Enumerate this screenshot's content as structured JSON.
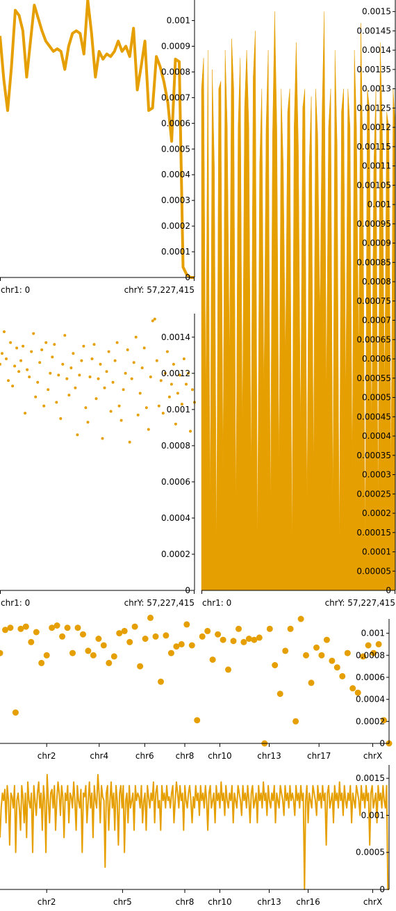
{
  "colors": {
    "series": "#e69f00",
    "axis": "#000000",
    "background": "#ffffff"
  },
  "chart_data": [
    {
      "id": "panel1",
      "type": "line",
      "xlabel_start": "chr1: 0",
      "xlabel_end": "chrY: 57,227,415",
      "ylim": [
        0,
        0.00108
      ],
      "yticks": [
        "0.001",
        "0.0009",
        "0.0008",
        "0.0007",
        "0.0006",
        "0.0005",
        "0.0004",
        "0.0003",
        "0.0002",
        "0.0001",
        "0"
      ],
      "ytick_values": [
        0.001,
        0.0009,
        0.0008,
        0.0007,
        0.0006,
        0.0005,
        0.0004,
        0.0003,
        0.0002,
        0.0001,
        0
      ],
      "values": [
        0.00094,
        0.00077,
        0.00065,
        0.00082,
        0.00104,
        0.00102,
        0.00096,
        0.00078,
        0.00092,
        0.00106,
        0.00101,
        0.00096,
        0.00092,
        0.0009,
        0.00088,
        0.00089,
        0.00088,
        0.00081,
        0.0009,
        0.00095,
        0.00096,
        0.00095,
        0.00087,
        0.00108,
        0.00095,
        0.00078,
        0.00088,
        0.00085,
        0.00087,
        0.00086,
        0.00088,
        0.00092,
        0.00088,
        0.0009,
        0.00086,
        0.00097,
        0.00073,
        0.00082,
        0.00092,
        0.00065,
        0.00066,
        0.00086,
        0.00082,
        0.00076,
        0.00068,
        0.00053,
        0.00085,
        0.00084,
        4e-05,
        1e-05,
        0.0,
        0.0
      ]
    },
    {
      "id": "panel2",
      "type": "scatter",
      "xlabel_start": "chr1: 0",
      "xlabel_end": "chrY: 57,227,415",
      "ylim": [
        0,
        0.00153
      ],
      "yticks": [
        "0.0014",
        "0.0012",
        "0.001",
        "0.0008",
        "0.0006",
        "0.0004",
        "0.0002",
        "0"
      ],
      "ytick_values": [
        0.0014,
        0.0012,
        0.001,
        0.0008,
        0.0006,
        0.0004,
        0.0002,
        0
      ],
      "values": [
        0.00125,
        0.00131,
        0.00143,
        0.00128,
        0.00116,
        0.00137,
        0.00113,
        0.00124,
        0.00134,
        0.00121,
        0.00127,
        0.00135,
        0.00098,
        0.00122,
        0.00118,
        0.00132,
        0.00142,
        0.00107,
        0.00115,
        0.00126,
        0.00133,
        0.00102,
        0.00137,
        0.00111,
        0.0012,
        0.00129,
        0.00136,
        0.00104,
        0.00119,
        0.00095,
        0.00125,
        0.00141,
        0.00117,
        0.00108,
        0.00123,
        0.00131,
        0.00112,
        0.00086,
        0.00119,
        0.00127,
        0.00135,
        0.00101,
        0.00093,
        0.00118,
        0.00128,
        0.00136,
        0.00106,
        0.00117,
        0.00125,
        0.00084,
        0.00112,
        0.00121,
        0.00132,
        0.00099,
        0.00115,
        0.00127,
        0.00137,
        0.00102,
        0.00094,
        0.00111,
        0.0012,
        0.00133,
        0.00082,
        0.00117,
        0.00126,
        0.0014,
        0.00097,
        0.00109,
        0.00123,
        0.00134,
        0.00101,
        0.00089,
        0.00118,
        0.00149,
        0.0015,
        0.00127,
        0.00102,
        0.00116,
        0.00098,
        0.0012,
        0.00132,
        0.00107,
        0.00114,
        0.00125,
        0.00092,
        0.00109,
        0.00119,
        0.00103,
        0.00128,
        0.00114,
        0.0012,
        0.00088,
        0.00111,
        0.00104
      ]
    },
    {
      "id": "panel3",
      "type": "area",
      "xlabel_start": "chr1: 0",
      "xlabel_end": "chrY: 57,227,415",
      "ylim": [
        0,
        0.00153
      ],
      "yticks": [
        "0.0015",
        "0.00145",
        "0.0014",
        "0.00135",
        "0.0013",
        "0.00125",
        "0.0012",
        "0.00115",
        "0.0011",
        "0.00105",
        "0.001",
        "0.00095",
        "0.0009",
        "0.00085",
        "0.0008",
        "0.00075",
        "0.0007",
        "0.00065",
        "0.0006",
        "0.00055",
        "0.0005",
        "0.00045",
        "0.0004",
        "0.00035",
        "0.0003",
        "0.00025",
        "0.0002",
        "0.00015",
        "0.0001",
        "0.00005",
        "0"
      ],
      "ytick_values": [
        0.0015,
        0.00145,
        0.0014,
        0.00135,
        0.0013,
        0.00125,
        0.0012,
        0.00115,
        0.0011,
        0.00105,
        0.001,
        0.00095,
        0.0009,
        0.00085,
        0.0008,
        0.00075,
        0.0007,
        0.00065,
        0.0006,
        0.00055,
        0.0005,
        0.00045,
        0.0004,
        0.00035,
        0.0003,
        0.00025,
        0.0002,
        0.00015,
        0.0001,
        5e-05,
        0
      ],
      "values": [
        0.0013,
        0.00138,
        0.0005,
        0.0014,
        0.0002,
        0.00135,
        0.0011,
        0.0001,
        0.0013,
        0.00132,
        0.0003,
        0.0014,
        0.0012,
        0.0006,
        0.00143,
        0.0013,
        0.0002,
        0.0012,
        0.00138,
        0.0004,
        0.00125,
        0.0014,
        0.0012,
        0.0003,
        0.00133,
        0.00145,
        0.0001,
        0.0011,
        0.0013,
        0.0005,
        0.0012,
        0.0014,
        0.0002,
        0.00118,
        0.0015,
        0.0012,
        0.0003,
        0.0013,
        0.0011,
        0.0006,
        0.00124,
        0.0013,
        0.0001,
        0.0012,
        0.00142,
        0.00115,
        0.0004,
        0.00125,
        0.0013,
        0.0002,
        0.0011,
        0.00128,
        0.0003,
        0.0013,
        0.00118,
        0.0007,
        0.00124,
        0.0015,
        0.0005,
        0.0012,
        0.0013,
        0.0002,
        0.0014,
        0.00115,
        0.0001,
        0.00124,
        0.0013,
        0.0005,
        0.0013,
        0.0012,
        0.0003,
        0.0014,
        0.0012,
        0.0006,
        0.00147,
        0.0011,
        0.0001,
        0.0013,
        0.00125,
        0.0004,
        0.0011,
        0.0013,
        0.0002,
        0.00142,
        0.0012,
        0.0005,
        0.00124,
        0.0012,
        0.0003,
        0.0013,
        0.0012
      ]
    },
    {
      "id": "panel4",
      "type": "scatter",
      "ylim": [
        0,
        0.00113
      ],
      "yticks": [
        "0.001",
        "0.0008",
        "0.0006",
        "0.0004",
        "0.0002",
        "0"
      ],
      "ytick_values": [
        0.001,
        0.0008,
        0.0006,
        0.0004,
        0.0002,
        0
      ],
      "xticks": [
        "chr2",
        "chr4",
        "chr6",
        "chr8",
        "chr10",
        "chr13",
        "chr17",
        "chrX"
      ],
      "xtick_fractions": [
        0.12,
        0.255,
        0.372,
        0.475,
        0.565,
        0.692,
        0.82,
        0.958
      ],
      "values": [
        0.00082,
        0.00103,
        0.00105,
        0.00028,
        0.00104,
        0.00106,
        0.00092,
        0.00101,
        0.00073,
        0.0008,
        0.00105,
        0.00107,
        0.00097,
        0.00105,
        0.00082,
        0.00105,
        0.00099,
        0.00084,
        0.0008,
        0.00095,
        0.00089,
        0.00073,
        0.00079,
        0.001,
        0.00102,
        0.00092,
        0.00106,
        0.0007,
        0.00095,
        0.00114,
        0.00097,
        0.00056,
        0.00098,
        0.00082,
        0.00088,
        0.0009,
        0.00108,
        0.00089,
        0.00021,
        0.00097,
        0.00102,
        0.00076,
        0.00099,
        0.00094,
        0.00067,
        0.00093,
        0.00104,
        0.00092,
        0.00095,
        0.00094,
        0.00096,
        0.0,
        0.00104,
        0.00071,
        0.00045,
        0.00084,
        0.00104,
        0.0002,
        0.00113,
        0.0008,
        0.00055,
        0.00087,
        0.0008,
        0.00094,
        0.00075,
        0.00069,
        0.00061,
        0.00082,
        0.0005,
        0.00046,
        0.00079,
        0.00089,
        0.00082,
        0.0009,
        0.00021,
        0.0
      ]
    },
    {
      "id": "panel5",
      "type": "line",
      "ylim": [
        0,
        0.00168
      ],
      "yticks": [
        "0.0015",
        "0.001",
        "0.0005",
        "0"
      ],
      "ytick_values": [
        0.0015,
        0.001,
        0.0005,
        0
      ],
      "xticks": [
        "chr2",
        "chr5",
        "chr8",
        "chr10",
        "chr13",
        "chr16",
        "chrX"
      ],
      "xtick_fractions": [
        0.12,
        0.315,
        0.475,
        0.565,
        0.692,
        0.792,
        0.958
      ],
      "values": [
        0.0007,
        0.0011,
        0.0013,
        0.0012,
        0.00135,
        0.0009,
        0.0014,
        0.0012,
        0.0006,
        0.0013,
        0.00125,
        0.0011,
        0.0014,
        0.0005,
        0.0012,
        0.0013,
        0.0011,
        0.0008,
        0.0014,
        0.00125,
        0.0009,
        0.0013,
        0.0007,
        0.00145,
        0.0012,
        0.0011,
        0.0013,
        0.0005,
        0.0014,
        0.0012,
        0.001,
        0.0013,
        0.00145,
        0.0011,
        0.0013,
        0.0008,
        0.0014,
        0.0012,
        0.0005,
        0.00155,
        0.0012,
        0.0009,
        0.0013,
        0.00135,
        0.0011,
        0.0014,
        0.0008,
        0.0012,
        0.00145,
        0.0013,
        0.001,
        0.0014,
        0.00125,
        0.0007,
        0.0013,
        0.0012,
        0.0014,
        0.0009,
        0.0013,
        0.00125,
        0.0011,
        0.00145,
        0.0012,
        0.0008,
        0.0014,
        0.0012,
        0.0011,
        0.00135,
        0.0005,
        0.0013,
        0.00125,
        0.0014,
        0.0009,
        0.0012,
        0.00145,
        0.0011,
        0.0013,
        0.0007,
        0.0014,
        0.0012,
        0.0011,
        0.00155,
        0.0013,
        0.0009,
        0.0014,
        0.00125,
        0.0012,
        0.0003,
        0.0013,
        0.0014,
        0.0008,
        0.0012,
        0.00145,
        0.0011,
        0.0013,
        0.0008,
        0.0014,
        0.0012,
        0.0006,
        0.0013,
        0.0014,
        0.0011,
        0.0014,
        0.0005,
        0.0012,
        0.0013,
        0.0009,
        0.0014,
        0.0011,
        0.0012,
        0.0013,
        0.0008,
        0.0014,
        0.0012,
        0.0013,
        0.00125,
        0.0011,
        0.0014,
        0.0009,
        0.0012,
        0.0013,
        0.0008,
        0.0014,
        0.00125,
        0.0011,
        0.0013,
        0.0012,
        0.00145,
        0.0009,
        0.0013,
        0.0014,
        0.0011,
        0.0012,
        0.0008,
        0.0014,
        0.0012,
        0.0013,
        0.0011,
        0.0014,
        0.0012,
        0.00125,
        0.0011,
        0.0013,
        0.0014,
        0.0009,
        0.0012,
        0.00145,
        0.0013,
        0.0011,
        0.0014,
        0.0012,
        0.0013,
        0.0008,
        0.0014,
        0.0012,
        0.0011,
        0.0013,
        0.0014,
        0.0012,
        0.0009,
        0.00125,
        0.0011,
        0.0014,
        0.0012,
        0.0013,
        0.001,
        0.0014,
        0.0012,
        0.0013,
        0.0011,
        0.0014,
        0.0012,
        0.0008,
        0.0013,
        0.0014,
        0.0011,
        0.0012,
        0.0013,
        0.0009,
        0.0014,
        0.0012,
        0.0013,
        0.0011,
        0.00145,
        0.0012,
        0.0013,
        0.001,
        0.0014,
        0.0012,
        0.0011,
        0.0013,
        0.0012,
        0.0014,
        0.0009,
        0.0013,
        0.0012,
        0.0011,
        0.0014,
        0.0013,
        0.0012,
        0.001,
        0.0014,
        0.0012,
        0.0013,
        0.0011,
        0.0014,
        0.0012,
        0.0009,
        0.0013,
        0.0014,
        0.0011,
        0.0012,
        0.0013,
        0.0009,
        0.0014,
        0.0012,
        0.0013,
        0.0011,
        0.00145,
        0.0012,
        0.0013,
        0.001,
        0.0014,
        0.0012,
        0.0011,
        0.0013,
        0.0012,
        0.0014,
        0.0009,
        0.0013,
        0.0012,
        0.0011,
        0.0014,
        0.0013,
        0.0012,
        0.001,
        0.0014,
        0.0012,
        0.0013,
        0.0011,
        0.0014,
        0.0012,
        0.0013,
        0.0012,
        0.001,
        0.0014,
        0.0012,
        0.0013,
        0.0011,
        0.0014,
        0.0012,
        0.0013,
        0.0,
        0.0012,
        0.0014,
        0.0009,
        0.0013,
        0.0012,
        0.0011,
        0.0014,
        0.0013,
        0.0012,
        0.001,
        0.0014,
        0.0012,
        0.0013,
        0.0011,
        0.0014,
        0.0012,
        0.0013,
        0.0006,
        0.0013,
        0.0014,
        0.0011,
        0.0012,
        0.0013,
        0.0009,
        0.0014,
        0.0012,
        0.0013,
        0.0011,
        0.00145,
        0.0012,
        0.0013,
        0.001,
        0.0014,
        0.0012,
        0.0011,
        0.0013,
        0.0012,
        0.0014,
        0.0009,
        0.0013,
        0.0012,
        0.0011,
        0.0014,
        0.0013,
        0.0012,
        0.001,
        0.0014,
        0.0012,
        0.0013,
        0.0011,
        0.0014,
        0.0012,
        0.0013,
        0.0006,
        0.0013,
        0.0014,
        0.0011,
        0.0012,
        0.0013,
        0.0009,
        0.0014,
        0.0012,
        0.0013,
        0.0011,
        0.0014,
        0.0012,
        0.0011,
        0.0014,
        0.0,
        0.0
      ]
    }
  ]
}
